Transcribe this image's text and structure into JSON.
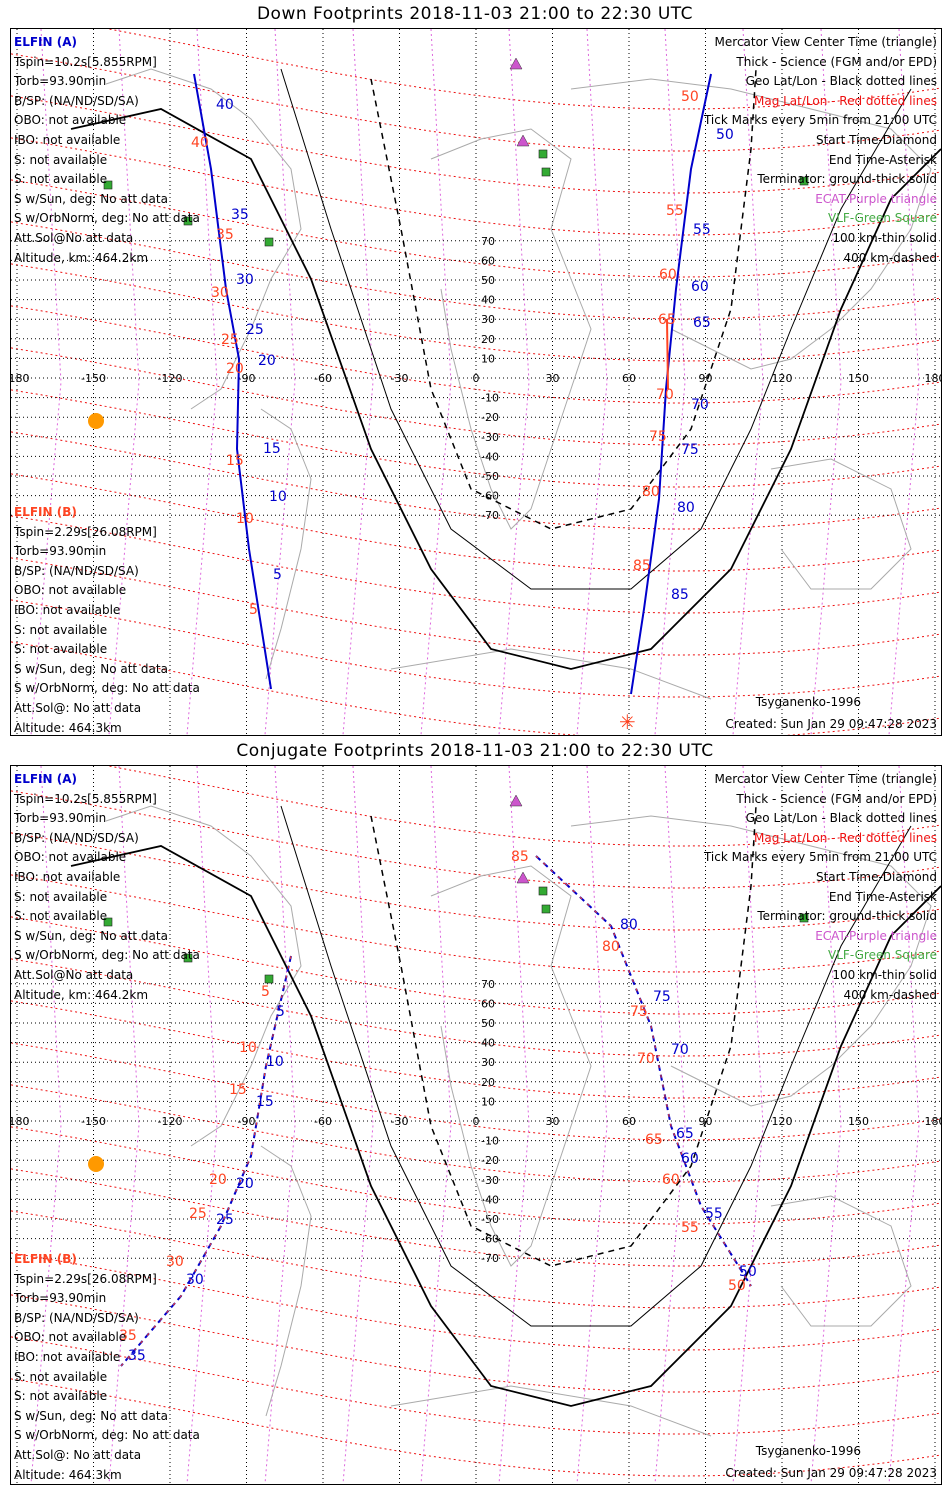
{
  "colors": {
    "grid_geo": "#000000",
    "grid_mag": "#ee1111",
    "meridian_mag": "#dd66dd",
    "coast": "#aaaaaa",
    "elfin_a": "#0000cc",
    "elfin_b": "#ff4422",
    "ecat": "#cc55cc",
    "vlf": "#33aa33",
    "sun": "#ff9900"
  },
  "map": {
    "lon_ticks": [
      "-180",
      "-150",
      "-120",
      "-90",
      "-60",
      "-30",
      "0",
      "30",
      "60",
      "90",
      "120",
      "150",
      "180"
    ],
    "lat_ticks": [
      "70",
      "60",
      "50",
      "40",
      "30",
      "20",
      "10",
      "0",
      "-10",
      "-20",
      "-30",
      "-40",
      "-50",
      "-60",
      "-70"
    ]
  },
  "panels": [
    {
      "id": "down",
      "title": "Down Footprints 2018-11-03 21:00 to 22:30 UTC",
      "elfin_a": {
        "header": "ELFIN (A)",
        "lines": [
          "Tspin=10.2s[5.855RPM]",
          "Torb=93.90min",
          "B/SP: (NA/ND/SD/SA)",
          "OBO: not available",
          "IBO: not available",
          "S: not available",
          "S: not available",
          "S w/Sun, deg: No att data",
          "S w/OrbNorm, deg: No att data",
          "Att.Sol@No att data",
          "Altitude, km: 464.2km"
        ]
      },
      "elfin_b": {
        "header": "ELFIN (B)",
        "lines": [
          "Tspin=2.29s[26.08RPM]",
          "Torb=93.90min",
          "B/SP: (NA/ND/SD/SA)",
          "OBO: not available",
          "IBO: not available",
          "S: not available",
          "S: not available",
          "S w/Sun, deg: No att data",
          "S w/OrbNorm, deg: No att data",
          "Att.Sol@: No att data",
          "Altitude: 464.3km"
        ]
      },
      "legend": [
        {
          "text": "Mercator View Center Time (triangle)",
          "style": ""
        },
        {
          "text": "Thick - Science (FGM and/or EPD)",
          "style": ""
        },
        {
          "text": "Geo Lat/Lon - Black dotted lines",
          "style": ""
        },
        {
          "text": "Mag Lat/Lon - Red dotted lines",
          "style": "mag"
        },
        {
          "text": "Tick Marks every 5min from 21:00 UTC",
          "style": ""
        },
        {
          "text": "Start Time-Diamond",
          "style": ""
        },
        {
          "text": "End Time-Asterisk",
          "style": ""
        },
        {
          "text": "Terminator: ground-thick solid",
          "style": ""
        },
        {
          "text": "ECAT-Purple triangle",
          "style": "purp"
        },
        {
          "text": "VLF-Green Square",
          "style": "grn"
        },
        {
          "text": "100 km-thin solid",
          "style": ""
        },
        {
          "text": "400 km-dashed",
          "style": ""
        }
      ],
      "model": "Tsyganenko-1996",
      "created": "Created: Sun Jan 29 09:47:28 2023",
      "track_a_labels": [
        {
          "label": "40",
          "sat": "a"
        },
        {
          "label": "35",
          "sat": "a"
        },
        {
          "label": "30",
          "sat": "a"
        },
        {
          "label": "25",
          "sat": "a"
        },
        {
          "label": "20",
          "sat": "a"
        },
        {
          "label": "15",
          "sat": "a"
        },
        {
          "label": "10",
          "sat": "a"
        },
        {
          "label": "5",
          "sat": "a"
        },
        {
          "label": "50",
          "sat": "a"
        },
        {
          "label": "55",
          "sat": "a"
        },
        {
          "label": "60",
          "sat": "a"
        },
        {
          "label": "65",
          "sat": "a"
        },
        {
          "label": "70",
          "sat": "a"
        },
        {
          "label": "75",
          "sat": "a"
        },
        {
          "label": "80",
          "sat": "a"
        },
        {
          "label": "85",
          "sat": "a"
        }
      ],
      "track_b_labels": [
        {
          "label": "40",
          "sat": "b"
        },
        {
          "label": "35",
          "sat": "b"
        },
        {
          "label": "30",
          "sat": "b"
        },
        {
          "label": "25",
          "sat": "b"
        },
        {
          "label": "20",
          "sat": "b"
        },
        {
          "label": "15",
          "sat": "b"
        },
        {
          "label": "10",
          "sat": "b"
        },
        {
          "label": "5",
          "sat": "b"
        },
        {
          "label": "50",
          "sat": "b"
        },
        {
          "label": "55",
          "sat": "b"
        },
        {
          "label": "60",
          "sat": "b"
        },
        {
          "label": "65",
          "sat": "b"
        },
        {
          "label": "70",
          "sat": "b"
        },
        {
          "label": "75",
          "sat": "b"
        },
        {
          "label": "80",
          "sat": "b"
        },
        {
          "label": "85",
          "sat": "b"
        }
      ]
    },
    {
      "id": "conjugate",
      "title": "Conjugate Footprints 2018-11-03 21:00 to 22:30 UTC",
      "elfin_a": {
        "header": "ELFIN (A)",
        "lines": [
          "Tspin=10.2s[5.855RPM]",
          "Torb=93.90min",
          "B/SP: (NA/ND/SD/SA)",
          "OBO: not available",
          "IBO: not available",
          "S: not available",
          "S: not available",
          "S w/Sun, deg: No att data",
          "S w/OrbNorm, deg: No att data",
          "Att.Sol@No att data",
          "Altitude, km: 464.2km"
        ]
      },
      "elfin_b": {
        "header": "ELFIN (B)",
        "lines": [
          "Tspin=2.29s[26.08RPM]",
          "Torb=93.90min",
          "B/SP: (NA/ND/SD/SA)",
          "OBO: not available",
          "IBO: not available",
          "S: not available",
          "S: not available",
          "S w/Sun, deg: No att data",
          "S w/OrbNorm, deg: No att data",
          "Att.Sol@: No att data",
          "Altitude: 464.3km"
        ]
      },
      "legend": [
        {
          "text": "Mercator View Center Time (triangle)",
          "style": ""
        },
        {
          "text": "Thick - Science (FGM and/or EPD)",
          "style": ""
        },
        {
          "text": "Geo Lat/Lon - Black dotted lines",
          "style": ""
        },
        {
          "text": "Mag Lat/Lon - Red dotted lines",
          "style": "mag"
        },
        {
          "text": "Tick Marks every 5min from 21:00 UTC",
          "style": ""
        },
        {
          "text": "Start Time-Diamond",
          "style": ""
        },
        {
          "text": "End Time-Asterisk",
          "style": ""
        },
        {
          "text": "Terminator: ground-thick solid",
          "style": ""
        },
        {
          "text": "ECAT-Purple triangle",
          "style": "purp"
        },
        {
          "text": "VLF-Green Square",
          "style": "grn"
        },
        {
          "text": "100 km-thin solid",
          "style": ""
        },
        {
          "text": "400 km-dashed",
          "style": ""
        }
      ],
      "model": "Tsyganenko-1996",
      "created": "Created: Sun Jan 29 09:47:28 2023",
      "track_a_labels": [
        {
          "label": "5",
          "sat": "a"
        },
        {
          "label": "10",
          "sat": "a"
        },
        {
          "label": "15",
          "sat": "a"
        },
        {
          "label": "20",
          "sat": "a"
        },
        {
          "label": "25",
          "sat": "a"
        },
        {
          "label": "30",
          "sat": "a"
        },
        {
          "label": "35",
          "sat": "a"
        },
        {
          "label": "50",
          "sat": "a"
        },
        {
          "label": "55",
          "sat": "a"
        },
        {
          "label": "60",
          "sat": "a"
        },
        {
          "label": "65",
          "sat": "a"
        },
        {
          "label": "70",
          "sat": "a"
        },
        {
          "label": "75",
          "sat": "a"
        },
        {
          "label": "80",
          "sat": "a"
        }
      ],
      "track_b_labels": [
        {
          "label": "5",
          "sat": "b"
        },
        {
          "label": "10",
          "sat": "b"
        },
        {
          "label": "15",
          "sat": "b"
        },
        {
          "label": "20",
          "sat": "b"
        },
        {
          "label": "25",
          "sat": "b"
        },
        {
          "label": "30",
          "sat": "b"
        },
        {
          "label": "35",
          "sat": "b"
        },
        {
          "label": "50",
          "sat": "b"
        },
        {
          "label": "55",
          "sat": "b"
        },
        {
          "label": "60",
          "sat": "b"
        },
        {
          "label": "65",
          "sat": "b"
        },
        {
          "label": "70",
          "sat": "b"
        },
        {
          "label": "75",
          "sat": "b"
        },
        {
          "label": "80",
          "sat": "b"
        },
        {
          "label": "85",
          "sat": "b"
        }
      ]
    }
  ]
}
